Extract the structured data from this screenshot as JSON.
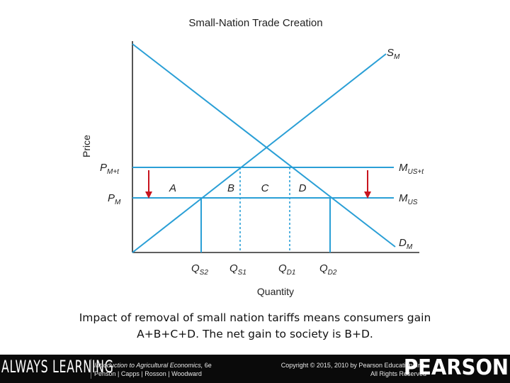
{
  "diagram": {
    "title": "Small-Nation Trade Creation",
    "y_axis_label": "Price",
    "x_axis_label": "Quantity",
    "curves": {
      "supply": {
        "main": "S",
        "sub": "M"
      },
      "demand": {
        "main": "D",
        "sub": "M"
      },
      "world_price_tariff": {
        "main": "M",
        "sub": "US+t"
      },
      "world_price": {
        "main": "M",
        "sub": "US"
      }
    },
    "price_labels": {
      "with_tariff": {
        "main": "P",
        "sub": "M+t"
      },
      "without_tariff": {
        "main": "P",
        "sub": "M"
      }
    },
    "quantity_labels": [
      {
        "main": "Q",
        "sub": "S2"
      },
      {
        "main": "Q",
        "sub": "S1"
      },
      {
        "main": "Q",
        "sub": "D1"
      },
      {
        "main": "Q",
        "sub": "D2"
      }
    ],
    "areas": [
      "A",
      "B",
      "C",
      "D"
    ],
    "colors": {
      "curves": "#2a9fd6",
      "axes": "#2b2b2b",
      "arrows": "#c8141e"
    }
  },
  "caption": {
    "line1": "Impact of removal of small nation tariffs means consumers gain",
    "line2": "A+B+C+D. The net gain to society is B+D."
  },
  "footer": {
    "brand_left": "ALWAYS LEARNING",
    "book_title": "Introduction to Agricultural Economics,",
    "book_edition": " 6e",
    "book_authors": "Penson | Capps | Rosson | Woodward",
    "copyright_line1": "Copyright © 2015, 2010 by Pearson Education, Inc.",
    "copyright_line2": "All Rights Reserved",
    "brand_right": "PEARSON"
  }
}
